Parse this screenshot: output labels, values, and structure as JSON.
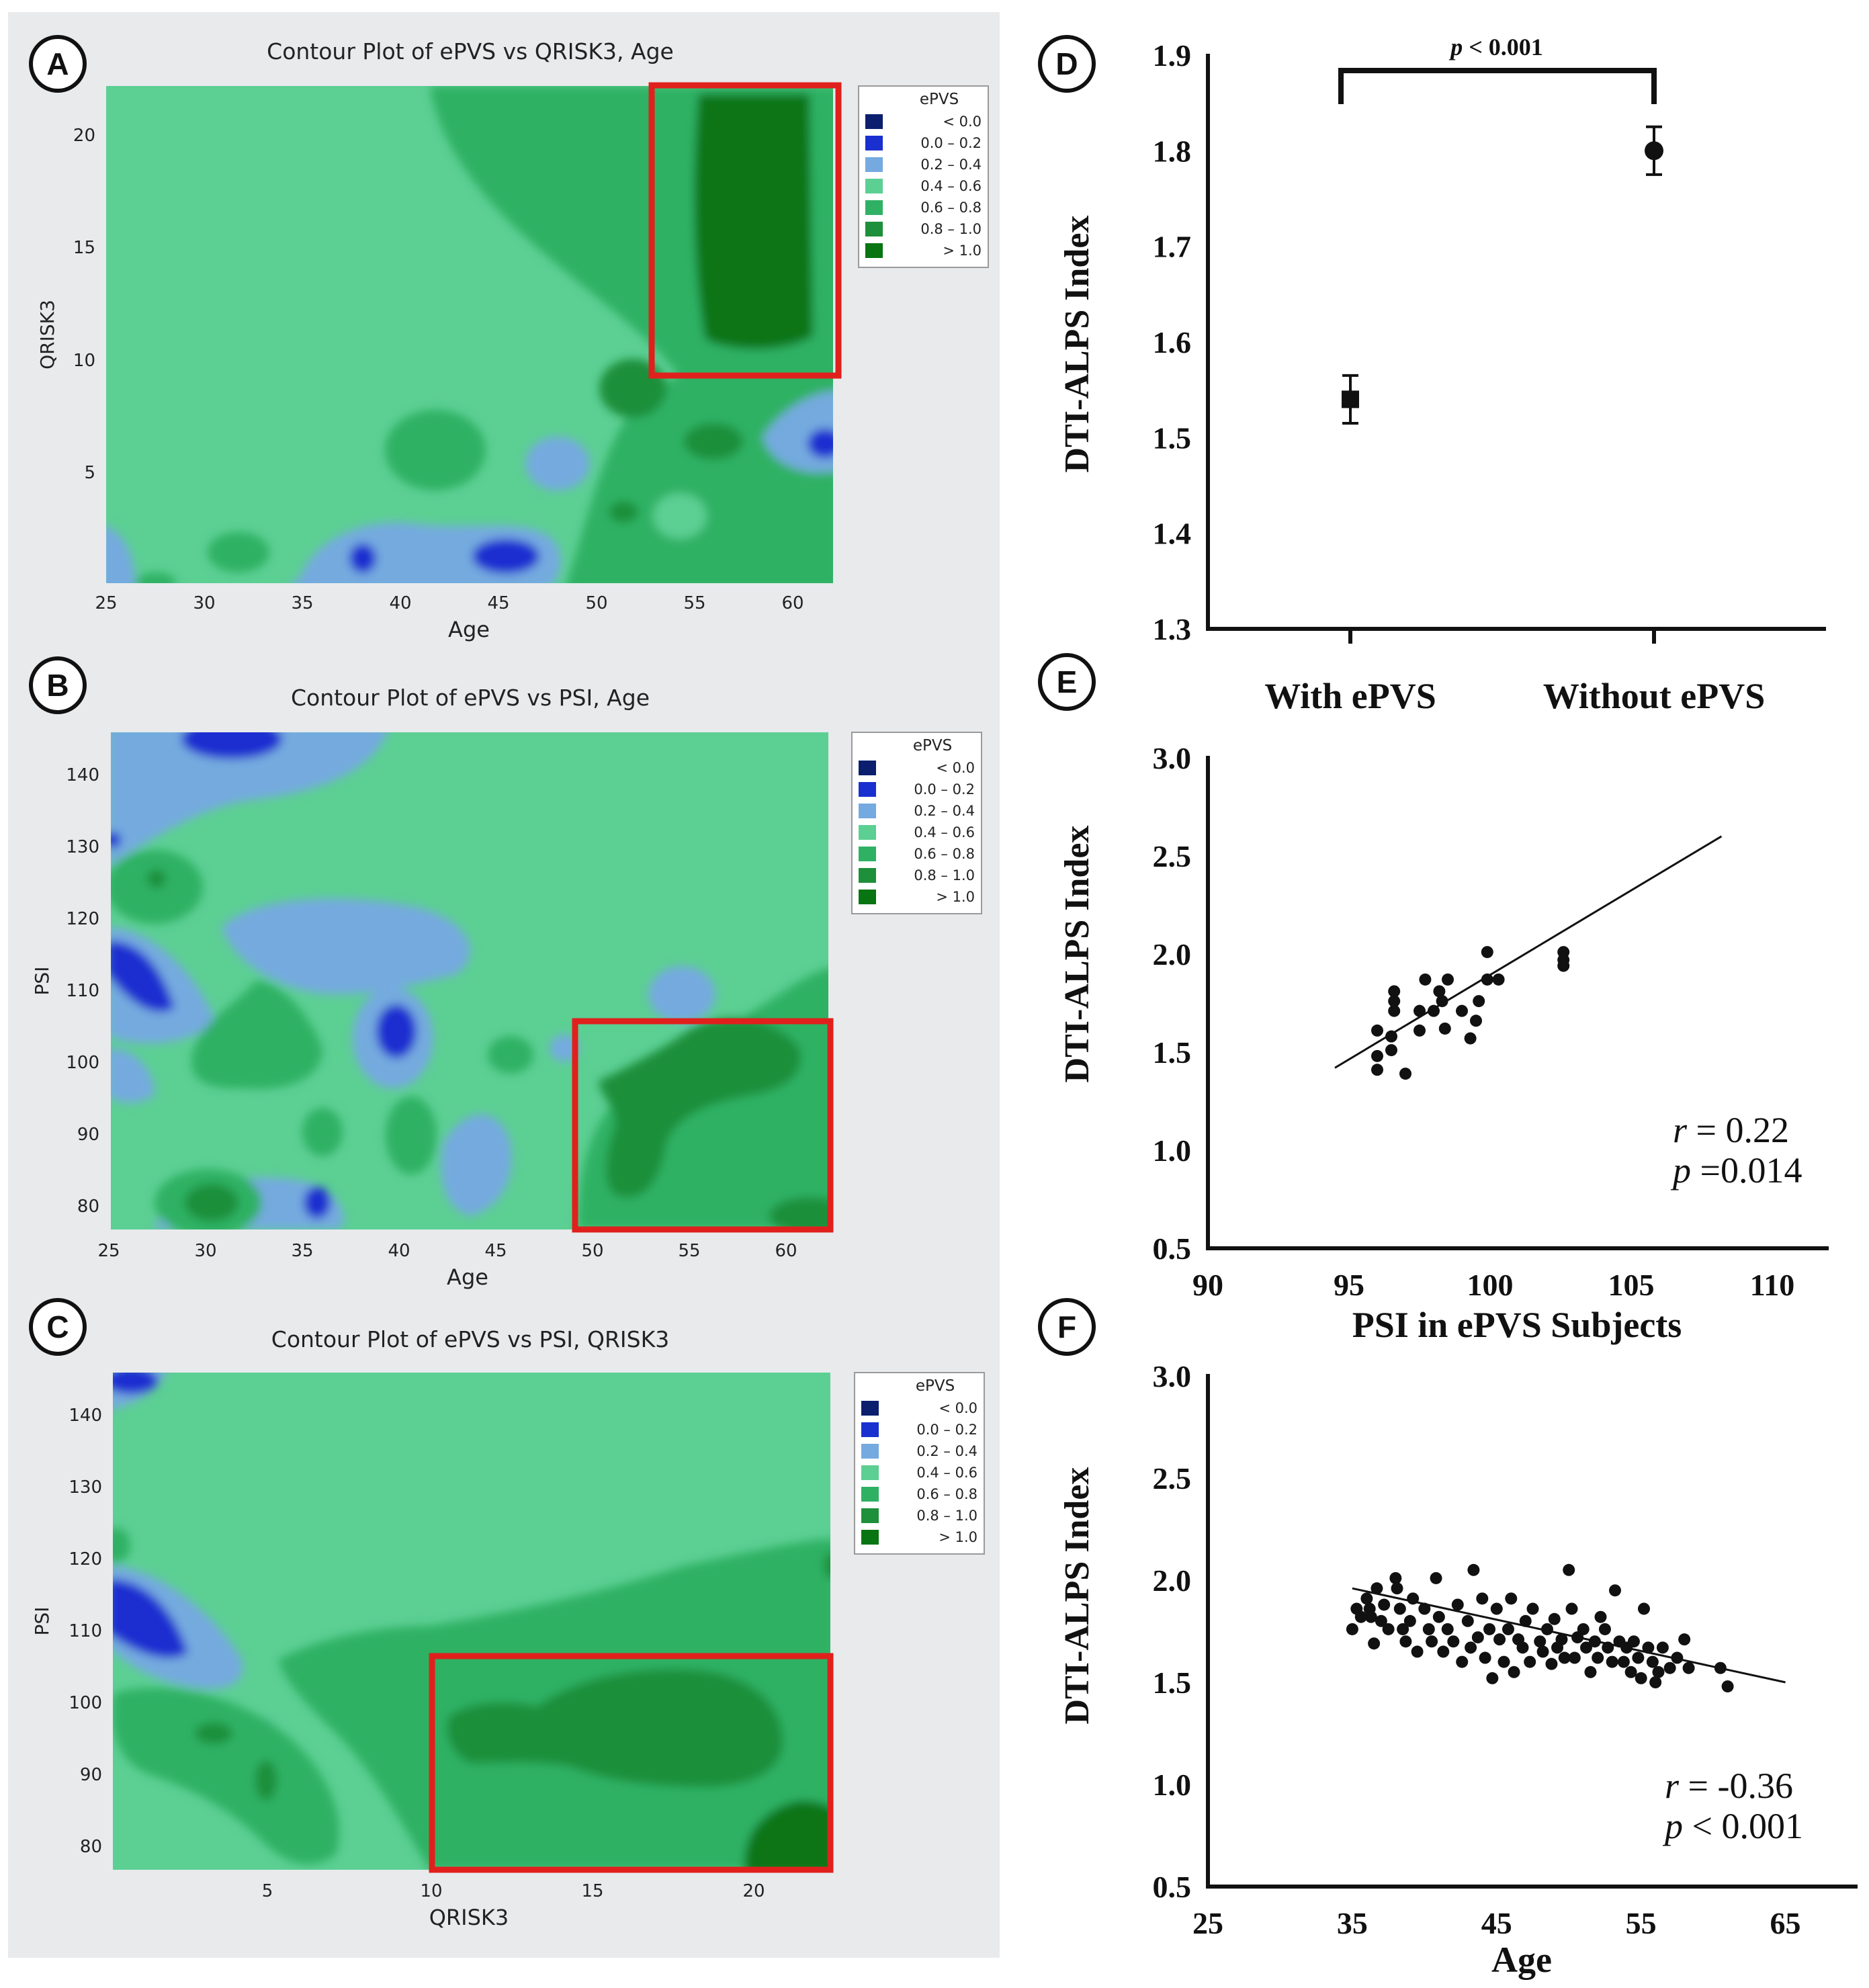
{
  "panels": {
    "A": {
      "letter": "A",
      "title": "Contour Plot of ePVS vs QRISK3, Age"
    },
    "B": {
      "letter": "B",
      "title": "Contour Plot of ePVS vs PSI, Age"
    },
    "C": {
      "letter": "C",
      "title": "Contour Plot of ePVS vs PSI, QRISK3"
    },
    "D": {
      "letter": "D"
    },
    "E": {
      "letter": "E"
    },
    "F": {
      "letter": "F"
    }
  },
  "legend": {
    "title": "ePVS",
    "items": [
      {
        "label": "<  0.0",
        "color": "#0b1f6e"
      },
      {
        "label": "0.0  –  0.2",
        "color": "#1a2fd0"
      },
      {
        "label": "0.2  –  0.4",
        "color": "#74aadf"
      },
      {
        "label": "0.4  –  0.6",
        "color": "#5ccf93"
      },
      {
        "label": "0.6  –  0.8",
        "color": "#2fb164"
      },
      {
        "label": "0.8  –  1.0",
        "color": "#1e8f3a"
      },
      {
        "label": ">  1.0",
        "color": "#087512"
      }
    ]
  },
  "colors": {
    "highlight": "#e0201c",
    "background": "#e8eaec"
  },
  "chart_data": [
    {
      "id": "A",
      "type": "heatmap",
      "title": "Contour Plot of ePVS vs QRISK3, Age",
      "xlabel": "Age",
      "ylabel": "QRISK3",
      "xlim": [
        25,
        62
      ],
      "ylim": [
        0,
        22
      ],
      "xticks": [
        25,
        30,
        35,
        40,
        45,
        50,
        55,
        60
      ],
      "yticks": [
        5,
        10,
        15,
        20
      ],
      "background_band": "0.4 – 0.6",
      "highlight_box": {
        "x": [
          53,
          62
        ],
        "y": [
          9,
          22
        ]
      }
    },
    {
      "id": "B",
      "type": "heatmap",
      "title": "Contour Plot of ePVS vs PSI, Age",
      "xlabel": "Age",
      "ylabel": "PSI",
      "xlim": [
        25,
        62
      ],
      "ylim": [
        75,
        145
      ],
      "xticks": [
        25,
        30,
        35,
        40,
        45,
        50,
        55,
        60
      ],
      "yticks": [
        80,
        90,
        100,
        110,
        120,
        130,
        140
      ],
      "background_band": "0.4 – 0.6",
      "highlight_box": {
        "x": [
          49,
          62
        ],
        "y": [
          75,
          106
        ]
      }
    },
    {
      "id": "C",
      "type": "heatmap",
      "title": "Contour Plot of ePVS vs PSI, QRISK3",
      "xlabel": "QRISK3",
      "ylabel": "PSI",
      "xlim": [
        0,
        22.5
      ],
      "ylim": [
        75,
        145
      ],
      "xticks": [
        5,
        10,
        15,
        20
      ],
      "yticks": [
        80,
        90,
        100,
        110,
        120,
        130,
        140
      ],
      "background_band": "0.4 – 0.6",
      "highlight_box": {
        "x": [
          10,
          22.5
        ],
        "y": [
          75,
          106
        ]
      }
    },
    {
      "id": "D",
      "type": "scatter",
      "ylabel": "DTI-ALPS Index",
      "ylim": [
        1.3,
        1.9
      ],
      "yticks": [
        "1.3",
        "1.4",
        "1.5",
        "1.6",
        "1.7",
        "1.8",
        "1.9"
      ],
      "categories": [
        "With ePVS",
        "Without ePVS"
      ],
      "means": [
        1.54,
        1.8
      ],
      "errors": [
        0.025,
        0.025
      ],
      "markers": [
        "square",
        "circle"
      ],
      "annotation": {
        "p": "p",
        "rest": " < 0.001"
      }
    },
    {
      "id": "E",
      "type": "scatter",
      "xlabel": "PSI in ePVS Subjects",
      "ylabel": "DTI-ALPS Index",
      "xlim": [
        90,
        112
      ],
      "ylim": [
        0.5,
        3.0
      ],
      "xticks": [
        "90",
        "95",
        "100",
        "105",
        "110"
      ],
      "yticks": [
        "0.5",
        "1.0",
        "1.5",
        "2.0",
        "2.5",
        "3.0"
      ],
      "points": [
        [
          96.0,
          1.61
        ],
        [
          96.0,
          1.48
        ],
        [
          96.0,
          1.41
        ],
        [
          96.5,
          1.58
        ],
        [
          96.5,
          1.51
        ],
        [
          96.6,
          1.81
        ],
        [
          96.6,
          1.76
        ],
        [
          96.6,
          1.71
        ],
        [
          97.0,
          1.39
        ],
        [
          97.5,
          1.61
        ],
        [
          97.5,
          1.71
        ],
        [
          97.7,
          1.87
        ],
        [
          98.0,
          1.71
        ],
        [
          98.2,
          1.81
        ],
        [
          98.3,
          1.76
        ],
        [
          98.4,
          1.62
        ],
        [
          98.5,
          1.87
        ],
        [
          99.0,
          1.71
        ],
        [
          99.3,
          1.57
        ],
        [
          99.5,
          1.66
        ],
        [
          99.6,
          1.76
        ],
        [
          99.9,
          2.01
        ],
        [
          99.9,
          1.87
        ],
        [
          100.3,
          1.87
        ],
        [
          102.6,
          2.01
        ],
        [
          102.6,
          1.97
        ],
        [
          102.6,
          1.94
        ]
      ],
      "fit_line": {
        "x": [
          94.5,
          108.2
        ],
        "y": [
          1.42,
          2.6
        ]
      },
      "stats": {
        "r_label": "r",
        "r_value": " = 0.22",
        "p_label": "p",
        "p_value": " =0.014"
      }
    },
    {
      "id": "F",
      "type": "scatter",
      "xlabel": "Age",
      "ylabel": "DTI-ALPS Index",
      "xlim": [
        25,
        70
      ],
      "ylim": [
        0.5,
        3.0
      ],
      "xticks": [
        "25",
        "35",
        "45",
        "55",
        "65"
      ],
      "yticks": [
        "0.5",
        "1.0",
        "1.5",
        "2.0",
        "2.5",
        "3.0"
      ],
      "points": [
        [
          35.0,
          1.76
        ],
        [
          35.3,
          1.86
        ],
        [
          35.6,
          1.82
        ],
        [
          36.0,
          1.91
        ],
        [
          36.2,
          1.86
        ],
        [
          36.3,
          1.82
        ],
        [
          36.5,
          1.69
        ],
        [
          36.7,
          1.96
        ],
        [
          37.0,
          1.8
        ],
        [
          37.2,
          1.88
        ],
        [
          37.5,
          1.76
        ],
        [
          38.0,
          2.01
        ],
        [
          38.1,
          1.96
        ],
        [
          38.3,
          1.86
        ],
        [
          38.5,
          1.76
        ],
        [
          38.7,
          1.7
        ],
        [
          39.0,
          1.8
        ],
        [
          39.2,
          1.91
        ],
        [
          39.5,
          1.65
        ],
        [
          40.0,
          1.86
        ],
        [
          40.3,
          1.76
        ],
        [
          40.5,
          1.7
        ],
        [
          40.8,
          2.01
        ],
        [
          41.0,
          1.82
        ],
        [
          41.3,
          1.65
        ],
        [
          41.6,
          1.76
        ],
        [
          42.0,
          1.7
        ],
        [
          42.3,
          1.88
        ],
        [
          42.6,
          1.6
        ],
        [
          43.0,
          1.8
        ],
        [
          43.2,
          1.67
        ],
        [
          43.4,
          2.05
        ],
        [
          43.7,
          1.72
        ],
        [
          44.0,
          1.91
        ],
        [
          44.2,
          1.62
        ],
        [
          44.5,
          1.76
        ],
        [
          44.7,
          1.52
        ],
        [
          45.0,
          1.86
        ],
        [
          45.2,
          1.71
        ],
        [
          45.5,
          1.6
        ],
        [
          45.8,
          1.76
        ],
        [
          46.0,
          1.91
        ],
        [
          46.2,
          1.55
        ],
        [
          46.5,
          1.71
        ],
        [
          46.8,
          1.67
        ],
        [
          47.0,
          1.8
        ],
        [
          47.3,
          1.6
        ],
        [
          47.5,
          1.86
        ],
        [
          48.0,
          1.7
        ],
        [
          48.2,
          1.65
        ],
        [
          48.5,
          1.76
        ],
        [
          48.8,
          1.59
        ],
        [
          49.0,
          1.81
        ],
        [
          49.2,
          1.67
        ],
        [
          49.5,
          1.71
        ],
        [
          49.7,
          1.62
        ],
        [
          50.0,
          2.05
        ],
        [
          50.2,
          1.86
        ],
        [
          50.4,
          1.62
        ],
        [
          50.6,
          1.72
        ],
        [
          51.0,
          1.76
        ],
        [
          51.2,
          1.67
        ],
        [
          51.5,
          1.55
        ],
        [
          51.8,
          1.7
        ],
        [
          52.0,
          1.62
        ],
        [
          52.2,
          1.82
        ],
        [
          52.5,
          1.76
        ],
        [
          52.7,
          1.67
        ],
        [
          53.0,
          1.6
        ],
        [
          53.2,
          1.95
        ],
        [
          53.5,
          1.7
        ],
        [
          53.8,
          1.6
        ],
        [
          54.0,
          1.67
        ],
        [
          54.3,
          1.55
        ],
        [
          54.5,
          1.7
        ],
        [
          54.8,
          1.62
        ],
        [
          55.0,
          1.52
        ],
        [
          55.2,
          1.86
        ],
        [
          55.5,
          1.67
        ],
        [
          55.8,
          1.6
        ],
        [
          56.0,
          1.5
        ],
        [
          56.2,
          1.55
        ],
        [
          56.5,
          1.67
        ],
        [
          57.0,
          1.57
        ],
        [
          57.5,
          1.62
        ],
        [
          58.0,
          1.71
        ],
        [
          58.3,
          1.57
        ],
        [
          60.5,
          1.57
        ],
        [
          61.0,
          1.48
        ]
      ],
      "fit_line": {
        "x": [
          35,
          65
        ],
        "y": [
          1.96,
          1.5
        ]
      },
      "stats": {
        "r_label": "r",
        "r_value": " = -0.36",
        "p_label": "p",
        "p_value": " < 0.001"
      }
    }
  ]
}
